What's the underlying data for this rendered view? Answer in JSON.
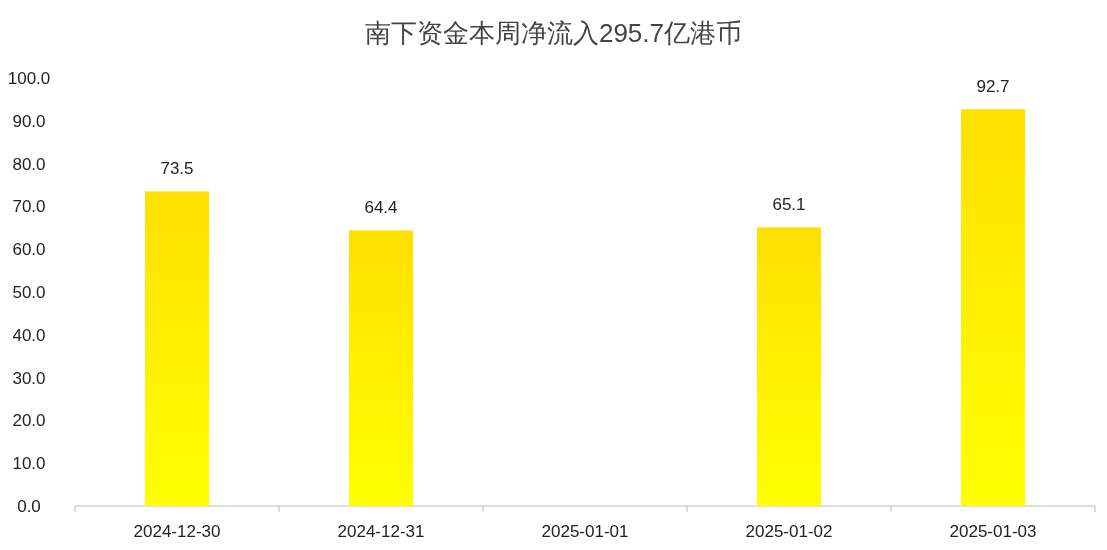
{
  "chart_data": {
    "type": "bar",
    "title": "南下资金本周净流入295.7亿港币",
    "categories": [
      "2024-12-30",
      "2024-12-31",
      "2025-01-01",
      "2025-01-02",
      "2025-01-03"
    ],
    "values": [
      73.5,
      64.4,
      null,
      65.1,
      92.7
    ],
    "color": "#ffe000",
    "ylim": [
      0,
      100
    ],
    "yticks": [
      {
        "value": 0,
        "label": "0.0"
      },
      {
        "value": 10,
        "label": "10.0"
      },
      {
        "value": 20,
        "label": "20.0"
      },
      {
        "value": 30,
        "label": "30.0"
      },
      {
        "value": 40,
        "label": "40.0"
      },
      {
        "value": 50,
        "label": "50.0"
      },
      {
        "value": 60,
        "label": "60.0"
      },
      {
        "value": 70,
        "label": "70.0"
      },
      {
        "value": 80,
        "label": "80.0"
      },
      {
        "value": 90,
        "label": "90.0"
      },
      {
        "value": 100,
        "label": "100.0"
      }
    ],
    "data_labels": true,
    "grid": false
  }
}
